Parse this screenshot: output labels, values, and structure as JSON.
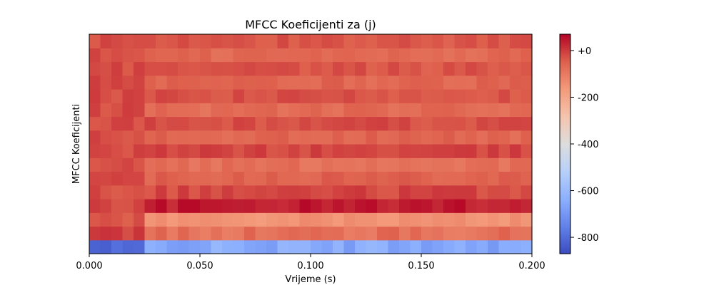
{
  "chart_data": {
    "type": "heatmap",
    "title": "MFCC Koeficijenti za (j)",
    "xlabel": "Vrijeme (s)",
    "ylabel": "MFCC Koeficijenti",
    "xlim": [
      0.0,
      0.2
    ],
    "x_ticks": [
      {
        "value": 0.0,
        "label": "0.000"
      },
      {
        "value": 0.05,
        "label": "0.050"
      },
      {
        "value": 0.1,
        "label": "0.100"
      },
      {
        "value": 0.15,
        "label": "0.150"
      },
      {
        "value": 0.2,
        "label": "0.200"
      }
    ],
    "n_coefficients": 16,
    "n_frames": 40,
    "frame_duration": 0.005,
    "colormap": "coolwarm",
    "color_range": [
      -870,
      70
    ],
    "colorbar_ticks": [
      {
        "value": 0,
        "label": "+0"
      },
      {
        "value": -200,
        "label": "-200"
      },
      {
        "value": -400,
        "label": "-400"
      },
      {
        "value": -600,
        "label": "-600"
      },
      {
        "value": -800,
        "label": "-800"
      }
    ],
    "onset_frame": 5,
    "coefficient_rows": [
      {
        "index": 0,
        "pre_onset": -830,
        "post_onset": -650,
        "variation": 45
      },
      {
        "index": 1,
        "pre_onset": -10,
        "post_onset": -80,
        "variation": 30
      },
      {
        "index": 2,
        "pre_onset": -30,
        "post_onset": -150,
        "variation": 20
      },
      {
        "index": 3,
        "pre_onset": -10,
        "post_onset": 40,
        "variation": 25
      },
      {
        "index": 4,
        "pre_onset": -20,
        "post_onset": -15,
        "variation": 25
      },
      {
        "index": 5,
        "pre_onset": -20,
        "post_onset": -50,
        "variation": 20
      },
      {
        "index": 6,
        "pre_onset": -20,
        "post_onset": -80,
        "variation": 20
      },
      {
        "index": 7,
        "pre_onset": -20,
        "post_onset": -15,
        "variation": 20
      },
      {
        "index": 8,
        "pre_onset": -20,
        "post_onset": -60,
        "variation": 20
      },
      {
        "index": 9,
        "pre_onset": -20,
        "post_onset": -25,
        "variation": 20
      },
      {
        "index": 10,
        "pre_onset": -20,
        "post_onset": -70,
        "variation": 20
      },
      {
        "index": 11,
        "pre_onset": -20,
        "post_onset": -30,
        "variation": 20
      },
      {
        "index": 12,
        "pre_onset": -20,
        "post_onset": -60,
        "variation": 20
      },
      {
        "index": 13,
        "pre_onset": -20,
        "post_onset": -35,
        "variation": 20
      },
      {
        "index": 14,
        "pre_onset": -20,
        "post_onset": -65,
        "variation": 20
      },
      {
        "index": 15,
        "pre_onset": -20,
        "post_onset": -35,
        "variation": 20
      }
    ]
  }
}
